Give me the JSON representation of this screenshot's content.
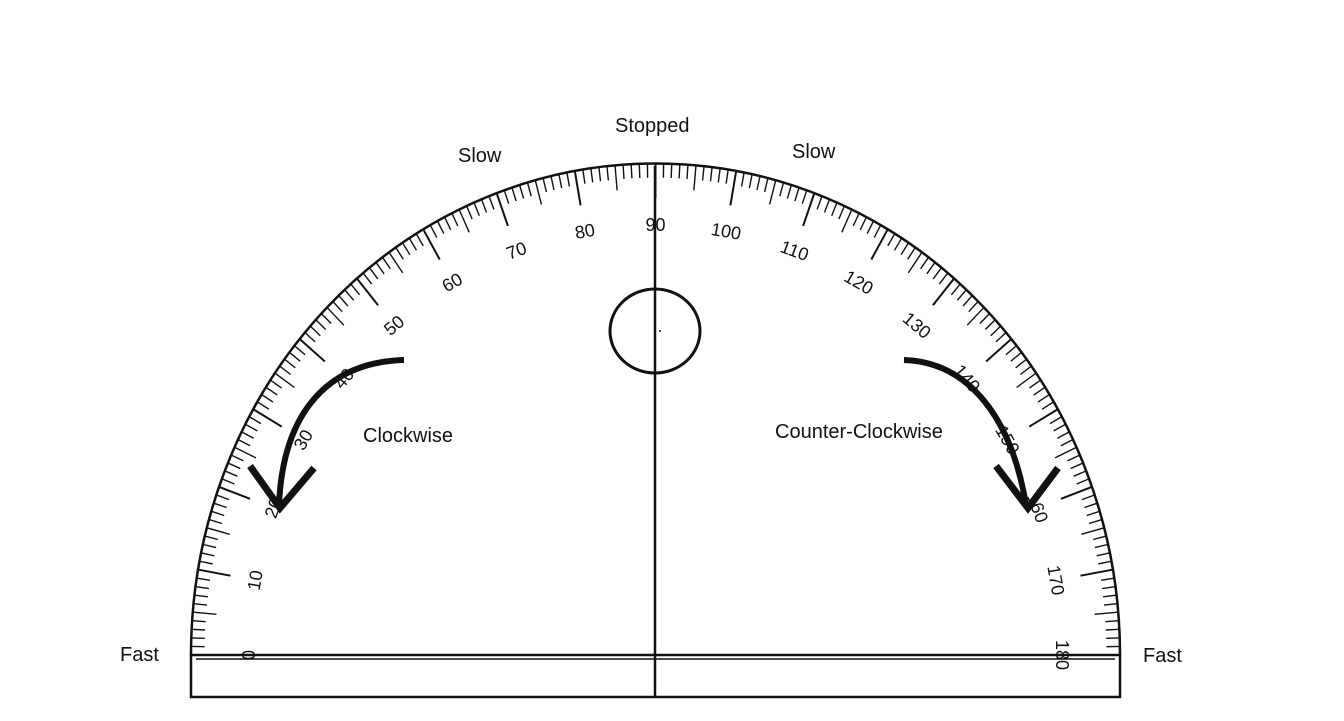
{
  "labels": {
    "stopped": "Stopped",
    "slow_left": "Slow",
    "slow_right": "Slow",
    "fast_left": "Fast",
    "fast_right": "Fast",
    "clockwise": "Clockwise",
    "counter_clockwise": "Counter-Clockwise"
  },
  "scale": {
    "min": 0,
    "max": 180,
    "major_step": 10,
    "numbers": [
      "0",
      "10",
      "20",
      "30",
      "40",
      "50",
      "60",
      "70",
      "80",
      "90",
      "100",
      "110",
      "120",
      "130",
      "140",
      "150",
      "160",
      "170",
      "180"
    ]
  },
  "colors": {
    "ink": "#111111",
    "background": "#ffffff"
  },
  "icons": [
    "clockwise-arrow-icon",
    "counter-clockwise-arrow-icon",
    "center-circle-icon"
  ]
}
